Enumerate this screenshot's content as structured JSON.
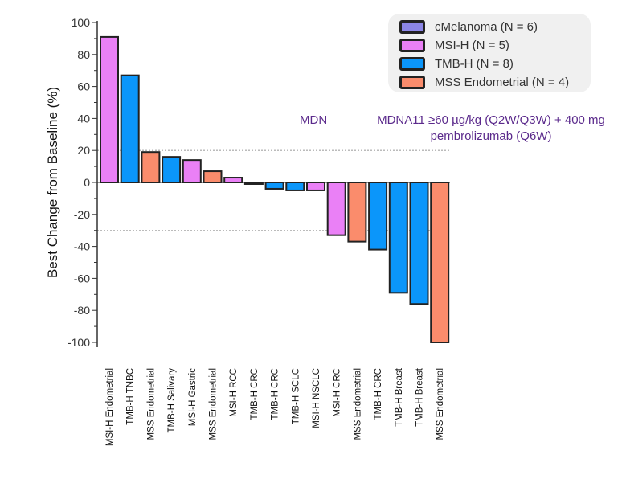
{
  "chart_data": {
    "type": "bar",
    "ylabel": "Best Change from Baseline (%)",
    "ylim": [
      -100,
      100
    ],
    "yticks": [
      100,
      80,
      60,
      40,
      20,
      0,
      -20,
      -40,
      -60,
      -80,
      -100
    ],
    "reference_lines": [
      20,
      -30
    ],
    "categories": [
      "MSI-H  Endometrial",
      "TMB-H  TNBC",
      "MSS Endometrial",
      "TMB-H Salivary",
      "MSI-H Gastric",
      "MSS Endometrial",
      "MSI-H RCC",
      "TMB-H CRC",
      "TMB-H CRC",
      "TMB-H SCLC",
      "MSI-H NSCLC",
      "MSI-H CRC",
      "MSS Endometrial",
      "TMB-H CRC",
      "TMB-H Breast",
      "TMB-H Breast",
      "MSS Endometrial"
    ],
    "values": [
      91,
      67,
      19,
      16,
      14,
      7,
      3,
      -1,
      -4,
      -5,
      -5,
      -33,
      -37,
      -42,
      -69,
      -76,
      -100
    ],
    "groups": [
      "MSI-H",
      "TMB-H",
      "MSS Endometrial",
      "TMB-H",
      "MSI-H",
      "MSS Endometrial",
      "MSI-H",
      "TMB-H",
      "TMB-H",
      "TMB-H",
      "MSI-H",
      "MSI-H",
      "MSS Endometrial",
      "TMB-H",
      "TMB-H",
      "TMB-H",
      "MSS Endometrial"
    ],
    "legend": {
      "placement": "top-right",
      "items": [
        {
          "key": "cMelanoma",
          "label": "cMelanoma (N = 6)",
          "color": "#8c86e6"
        },
        {
          "key": "MSI-H",
          "label": "MSI-H (N = 5)",
          "color": "#ea80f6"
        },
        {
          "key": "TMB-H",
          "label": "TMB-H (N = 8)",
          "color": "#0b96fa"
        },
        {
          "key": "MSS Endometrial",
          "label": "MSS Endometrial (N = 4)",
          "color": "#fa8c6c"
        }
      ]
    },
    "annotations": {
      "truncated": "MDN",
      "line1": "MDNA11 ≥60 µg/kg (Q2W/Q3W) + 400 mg",
      "line2": "pembrolizumab (Q6W)"
    }
  }
}
